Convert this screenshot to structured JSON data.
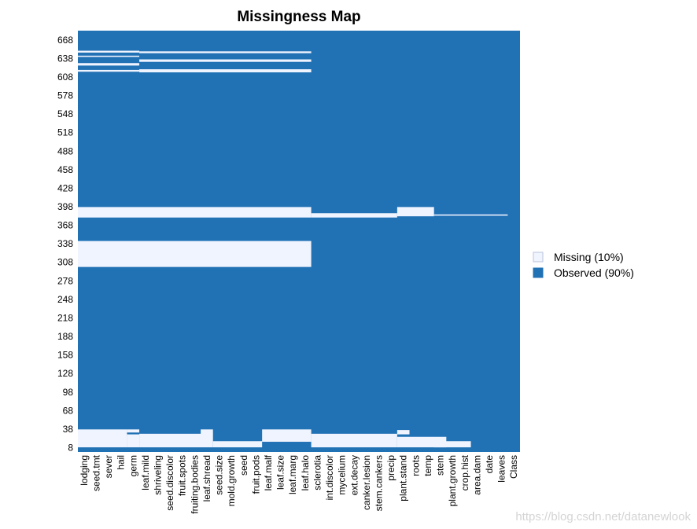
{
  "chart_data": {
    "type": "heatmap",
    "title": "Missingness Map",
    "colors": {
      "missing": "#f0f4fe",
      "observed": "#2171b5"
    },
    "legend": {
      "placement": "right",
      "entries": [
        {
          "key": "missing",
          "label": "Missing (10%)"
        },
        {
          "key": "observed",
          "label": "Observed (90%)"
        }
      ]
    },
    "columns": [
      "lodging",
      "seed.tmt",
      "sever",
      "hail",
      "germ",
      "leaf.mild",
      "shriveling",
      "seed.discolor",
      "fruit.spots",
      "fruiting.bodies",
      "leaf.shread",
      "seed.size",
      "mold.growth",
      "seed",
      "fruit.pods",
      "leaf.malf",
      "leaf.size",
      "leaf.marg",
      "leaf.halo",
      "sclerotia",
      "int.discolor",
      "mycelium",
      "ext.decay",
      "canker.lesion",
      "stem.cankers",
      "precip",
      "plant.stand",
      "roots",
      "temp",
      "stem",
      "plant.growth",
      "crop.hist",
      "area.dam",
      "date",
      "leaves",
      "Class"
    ],
    "y_ticks": [
      8,
      38,
      68,
      98,
      128,
      158,
      188,
      218,
      248,
      278,
      308,
      338,
      368,
      398,
      428,
      458,
      488,
      518,
      548,
      578,
      608,
      638,
      668
    ],
    "y_range": [
      1,
      683
    ],
    "missing_blocks": [
      {
        "cols": [
          0,
          18
        ],
        "rows": [
          301,
          342
        ]
      },
      {
        "cols": [
          0,
          18
        ],
        "rows": [
          381,
          397
        ]
      },
      {
        "cols": [
          19,
          25
        ],
        "rows": [
          381,
          387
        ]
      },
      {
        "cols": [
          26,
          28
        ],
        "rows": [
          383,
          397
        ]
      },
      {
        "cols": [
          29,
          34
        ],
        "rows": [
          384,
          385
        ]
      },
      {
        "cols": [
          0,
          4
        ],
        "rows": [
          648,
          650
        ]
      },
      {
        "cols": [
          0,
          4
        ],
        "rows": [
          641,
          642
        ]
      },
      {
        "cols": [
          0,
          4
        ],
        "rows": [
          627,
          630
        ]
      },
      {
        "cols": [
          0,
          4
        ],
        "rows": [
          617,
          619
        ]
      },
      {
        "cols": [
          5,
          18
        ],
        "rows": [
          647,
          649
        ]
      },
      {
        "cols": [
          5,
          18
        ],
        "rows": [
          633,
          636
        ]
      },
      {
        "cols": [
          5,
          18
        ],
        "rows": [
          616,
          620
        ]
      },
      {
        "cols": [
          0,
          3
        ],
        "rows": [
          9,
          37
        ]
      },
      {
        "cols": [
          4,
          4
        ],
        "rows": [
          9,
          29
        ]
      },
      {
        "cols": [
          4,
          4
        ],
        "rows": [
          33,
          37
        ]
      },
      {
        "cols": [
          5,
          10
        ],
        "rows": [
          9,
          30
        ]
      },
      {
        "cols": [
          10,
          10
        ],
        "rows": [
          30,
          37
        ]
      },
      {
        "cols": [
          11,
          14
        ],
        "rows": [
          9,
          18
        ]
      },
      {
        "cols": [
          15,
          18
        ],
        "rows": [
          18,
          37
        ]
      },
      {
        "cols": [
          19,
          25
        ],
        "rows": [
          9,
          30
        ]
      },
      {
        "cols": [
          26,
          29
        ],
        "rows": [
          9,
          25
        ]
      },
      {
        "cols": [
          29,
          31
        ],
        "rows": [
          9,
          18
        ]
      },
      {
        "cols": [
          26,
          26
        ],
        "rows": [
          30,
          36
        ]
      }
    ]
  },
  "watermark": "https://blog.csdn.net/datanewlook"
}
